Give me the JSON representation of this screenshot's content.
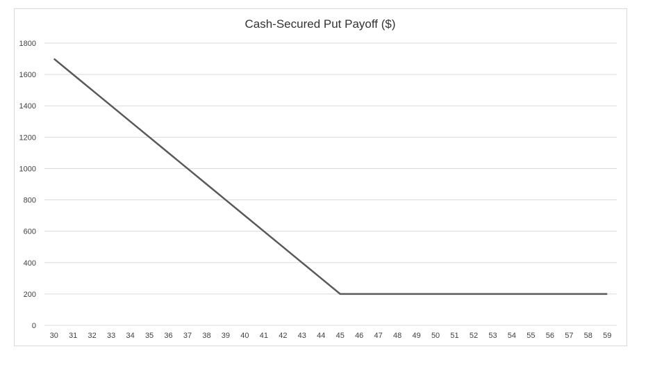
{
  "chart_data": {
    "type": "line",
    "title": "Cash-Secured Put Payoff ($)",
    "xlabel": "",
    "ylabel": "",
    "x": [
      30,
      31,
      32,
      33,
      34,
      35,
      36,
      37,
      38,
      39,
      40,
      41,
      42,
      43,
      44,
      45,
      46,
      47,
      48,
      49,
      50,
      51,
      52,
      53,
      54,
      55,
      56,
      57,
      58,
      59
    ],
    "series": [
      {
        "values": [
          1700,
          1600,
          1500,
          1400,
          1300,
          1200,
          1100,
          1000,
          900,
          800,
          700,
          600,
          500,
          400,
          300,
          200,
          200,
          200,
          200,
          200,
          200,
          200,
          200,
          200,
          200,
          200,
          200,
          200,
          200,
          200
        ]
      }
    ],
    "ylim": [
      0,
      1800
    ],
    "yticks": [
      0,
      200,
      400,
      600,
      800,
      1000,
      1200,
      1400,
      1600,
      1800
    ],
    "grid": "horizontal",
    "legend": "none",
    "line_color": "#595959",
    "grid_color": "#d9d9d9"
  }
}
